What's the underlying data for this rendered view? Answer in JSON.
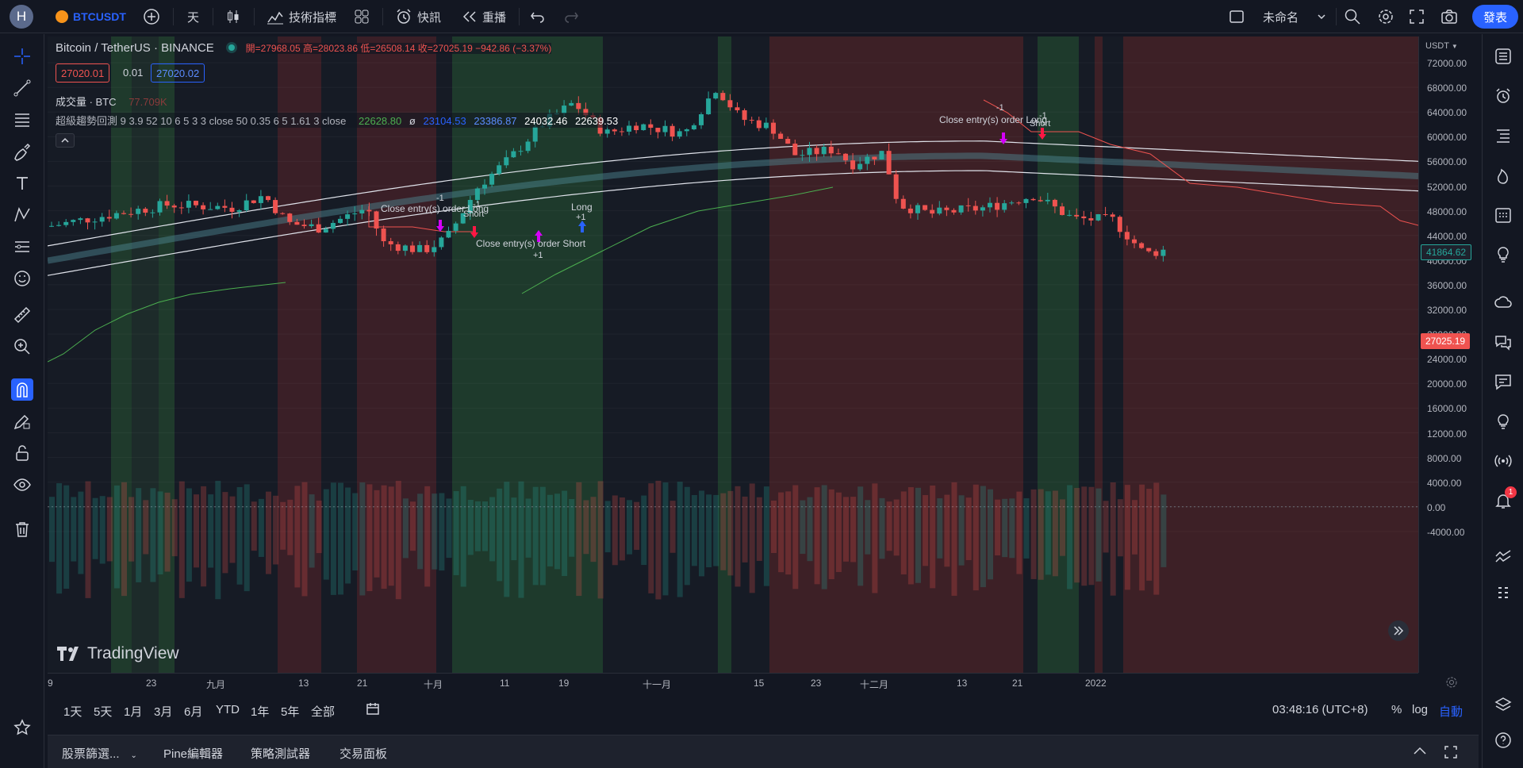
{
  "header": {
    "avatar_letter": "H",
    "symbol": "BTCUSDT",
    "interval": "天",
    "indicators_label": "技術指標",
    "alert_label": "快訊",
    "replay_label": "重播",
    "layout_name": "未命名",
    "publish_label": "發表"
  },
  "legend": {
    "title": "Bitcoin / TetherUS · BINANCE",
    "ohlc": "開=27968.05 高=28023.86 低=26508.14 收=27025.19 −942.86 (−3.37%)",
    "bid": "27020.01",
    "spread": "0.01",
    "ask": "27020.02",
    "volume_label": "成交量 · BTC",
    "volume_value": "77.709K",
    "strategy_label": "超級趨勢回測 9 3.9 52 10 6 5 3 3 close 50 0.35 6 5 1.61 3 close",
    "strategy_values": [
      "22628.80",
      "ø",
      "23104.53",
      "23386.87",
      "24032.46",
      "22639.53"
    ]
  },
  "price_axis": {
    "currency": "USDT",
    "labels": [
      "72000.00",
      "68000.00",
      "64000.00",
      "60000.00",
      "56000.00",
      "52000.00",
      "48000.00",
      "44000.00",
      "40000.00",
      "36000.00",
      "32000.00",
      "28000.00",
      "24000.00",
      "20000.00",
      "16000.00",
      "12000.00",
      "8000.00",
      "4000.00",
      "0.00",
      "-4000.00"
    ],
    "tag_current": "41864.62",
    "tag_last": "27025.19"
  },
  "time_axis": {
    "labels": [
      "9",
      "23",
      "九月",
      "13",
      "21",
      "十月",
      "11",
      "19",
      "十一月",
      "15",
      "23",
      "十二月",
      "13",
      "21",
      "2022"
    ]
  },
  "range_bar": {
    "ranges": [
      "1天",
      "5天",
      "1月",
      "3月",
      "6月",
      "YTD",
      "1年",
      "5年",
      "全部"
    ],
    "clock": "03:48:16 (UTC+8)",
    "percent": "%",
    "log": "log",
    "auto": "自動"
  },
  "bottom_tabs": [
    "股票篩選...",
    "Pine編輯器",
    "策略測試器",
    "交易面板"
  ],
  "annotations": {
    "close_long_1": "Close entry(s) order Long",
    "short_1": "Short",
    "minus1_a": "-1",
    "minus1_b": "-1",
    "close_short": "Close entry(s) order Short",
    "plus1_a": "+1",
    "long": "Long",
    "plus1_b": "+1",
    "minus1_c": "-1",
    "close_long_2": "Close entry(s) order Long",
    "minus1_d": "-1",
    "short_2": "Short"
  },
  "watermark": "TradingView",
  "notifications_count": "1",
  "colors": {
    "up": "#26a69a",
    "down": "#ef5350",
    "bg": "#131722",
    "accent": "#2962ff",
    "bull_zone": "#1e3a2a",
    "bear_zone": "#3d1f24"
  }
}
